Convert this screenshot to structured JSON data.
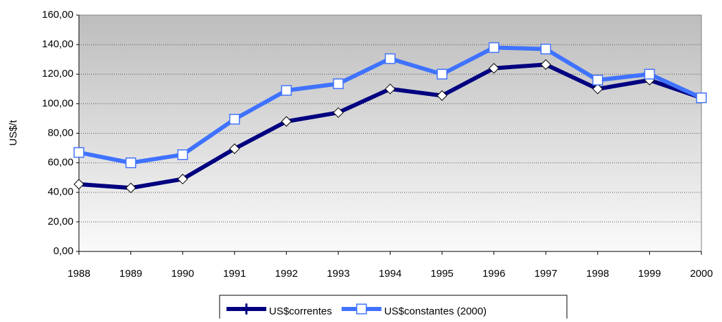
{
  "chart_data": {
    "type": "line",
    "y_label": "US$/t",
    "categories": [
      "1988",
      "1989",
      "1990",
      "1991",
      "1992",
      "1993",
      "1994",
      "1995",
      "1996",
      "1997",
      "1998",
      "1999",
      "2000"
    ],
    "series": [
      {
        "name": "US$correntes",
        "color": "#000080",
        "marker": "diamond",
        "values": [
          45.5,
          43,
          49,
          69.5,
          88,
          94,
          110,
          105.5,
          124,
          126.5,
          110,
          116,
          104
        ]
      },
      {
        "name": "US$constantes (2000)",
        "color": "#3f72ff",
        "marker": "square",
        "values": [
          67,
          60,
          65.5,
          89.5,
          109,
          113.5,
          130.5,
          120,
          138,
          137,
          116,
          120,
          104
        ]
      }
    ],
    "ylim": [
      0,
      160
    ],
    "yticks": [
      {
        "value": 0,
        "label": "0,00"
      },
      {
        "value": 20,
        "label": "20,00"
      },
      {
        "value": 40,
        "label": "40,00"
      },
      {
        "value": 60,
        "label": "60,00"
      },
      {
        "value": 80,
        "label": "80,00"
      },
      {
        "value": 100,
        "label": "100,00"
      },
      {
        "value": 120,
        "label": "120,00"
      },
      {
        "value": 140,
        "label": "140,00"
      },
      {
        "value": 160,
        "label": "160,00"
      }
    ],
    "grid": true,
    "legend": "bottom"
  }
}
